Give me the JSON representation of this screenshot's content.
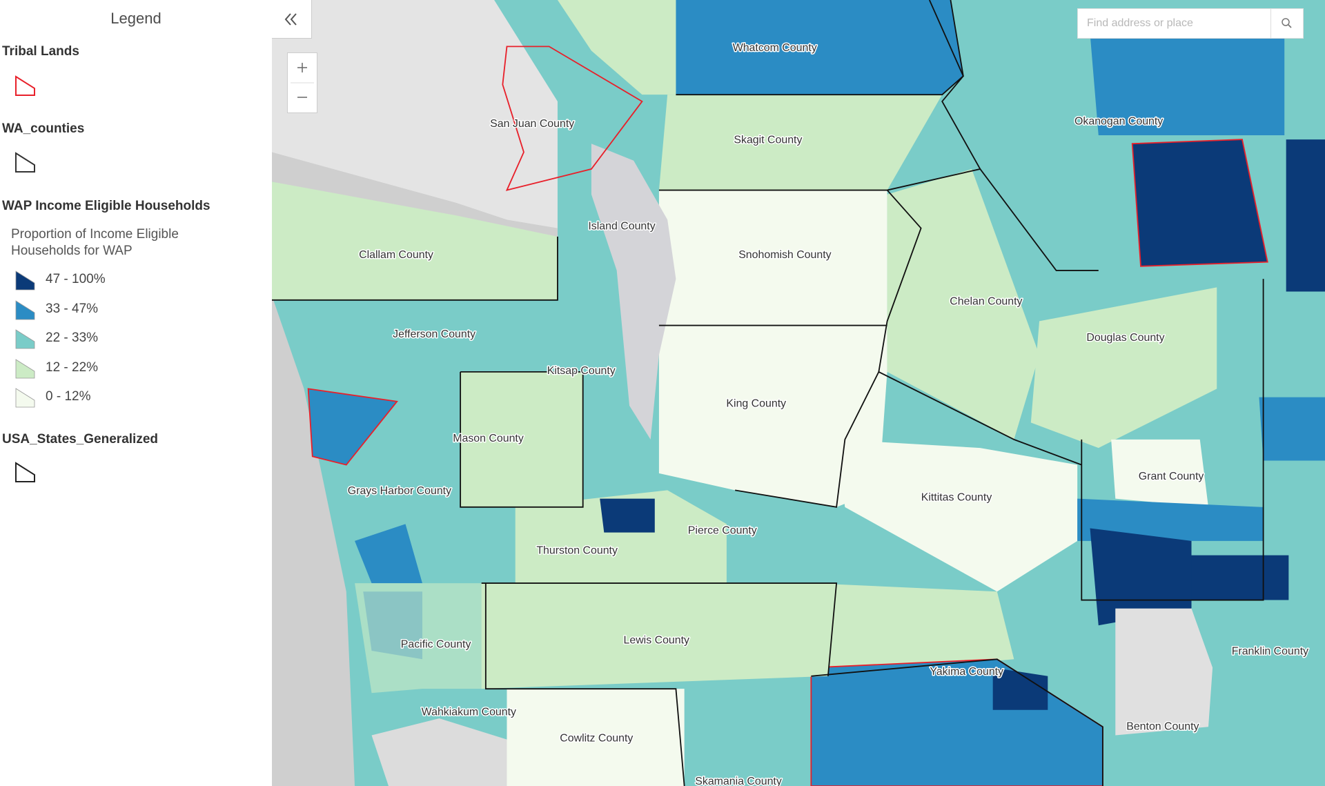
{
  "legend": {
    "title": "Legend",
    "layers": [
      {
        "name": "Tribal Lands"
      },
      {
        "name": "WA_counties"
      },
      {
        "name": "WAP Income Eligible Households",
        "field": "Proportion of Income Eligible Households for WAP",
        "classes": [
          {
            "label": "47 - 100%",
            "color": "#0b3a78"
          },
          {
            "label": "33 - 47%",
            "color": "#2b8cc4"
          },
          {
            "label": "22 - 33%",
            "color": "#7accc8"
          },
          {
            "label": "12 - 22%",
            "color": "#ccebc5"
          },
          {
            "label": "0 - 12%",
            "color": "#f4faee"
          }
        ]
      },
      {
        "name": "USA_States_Generalized"
      }
    ]
  },
  "search": {
    "placeholder": "Find address or place"
  },
  "map": {
    "county_labels": [
      "Whatcom County",
      "San Juan County",
      "Skagit County",
      "Okanogan County",
      "Island County",
      "Clallam County",
      "Snohomish County",
      "Chelan County",
      "Jefferson County",
      "Douglas County",
      "Kitsap County",
      "King County",
      "Mason County",
      "Grant County",
      "Grays Harbor County",
      "Kittitas County",
      "Pierce County",
      "Thurston County",
      "Pacific County",
      "Lewis County",
      "Franklin County",
      "Yakima County",
      "Wahkiakum County",
      "Benton County",
      "Cowlitz County",
      "Skamania County"
    ]
  }
}
